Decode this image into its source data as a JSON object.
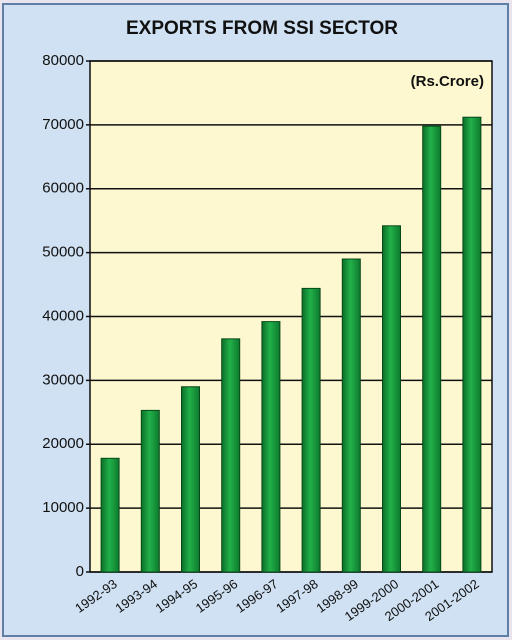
{
  "chart_data": {
    "type": "bar",
    "title": "EXPORTS FROM SSI SECTOR",
    "unit_label": "(Rs.Crore)",
    "categories": [
      "1992-93",
      "1993-94",
      "1994-95",
      "1995-96",
      "1996-97",
      "1997-98",
      "1998-99",
      "1999-2000",
      "2000-2001",
      "2001-2002"
    ],
    "values": [
      17800,
      25300,
      29000,
      36500,
      39200,
      44400,
      49000,
      54200,
      69800,
      71200
    ],
    "color": "#159a3c",
    "ylim": [
      0,
      80000
    ],
    "yticks": [
      0,
      10000,
      20000,
      30000,
      40000,
      50000,
      60000,
      70000,
      80000
    ],
    "grid": true
  }
}
